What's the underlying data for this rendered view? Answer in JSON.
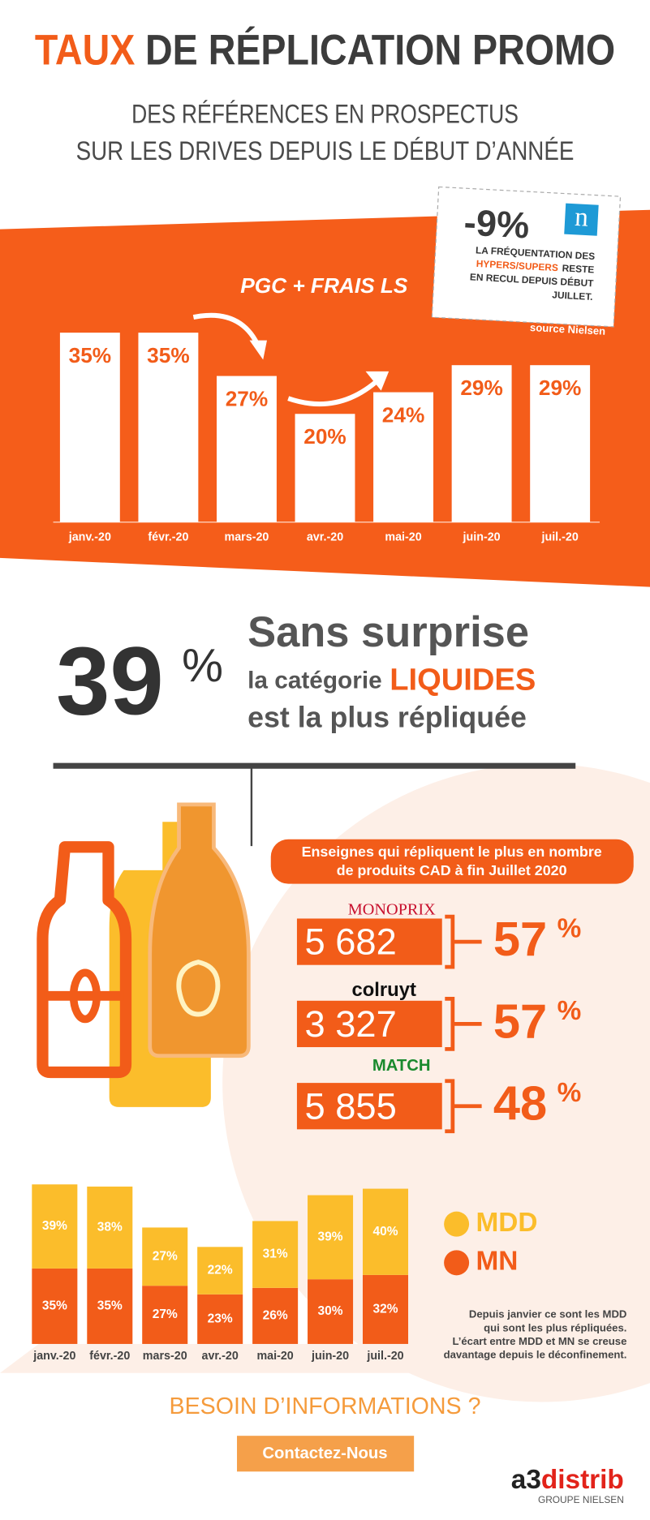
{
  "header": {
    "title_highlight": "TAUX",
    "title_rest": "DE RÉPLICATION PROMO",
    "subtitle_line1": "DES RÉFÉRENCES EN PROSPECTUS",
    "subtitle_line2": "SUR LES DRIVES DEPUIS LE DÉBUT D’ANNÉE"
  },
  "nielsen_card": {
    "value": "-9%",
    "logo": "n",
    "line1": "LA FRÉQUENTATION DES",
    "highlight": "HYPERS/SUPERS",
    "line2_rest": "RESTE",
    "line3": "EN RECUL DEPUIS DÉBUT",
    "line4": "JUILLET.",
    "source": "source Nielsen"
  },
  "chart_data": [
    {
      "type": "bar",
      "title": "PGC + FRAIS LS",
      "color": "#ffffff",
      "label_color": "#f25c19",
      "categories": [
        "janv.-20",
        "févr.-20",
        "mars-20",
        "avr.-20",
        "mai-20",
        "juin-20",
        "juil.-20"
      ],
      "values": [
        35,
        35,
        27,
        20,
        24,
        29,
        29
      ],
      "value_labels": [
        "35%",
        "35%",
        "27%",
        "20%",
        "24%",
        "29%",
        "29%"
      ]
    },
    {
      "type": "stacked_bar",
      "categories": [
        "janv.-20",
        "févr.-20",
        "mars-20",
        "avr.-20",
        "mai-20",
        "juin-20",
        "juil.-20"
      ],
      "series": [
        {
          "name": "MDD",
          "color": "#fbbd2b",
          "values": [
            39,
            38,
            27,
            22,
            31,
            39,
            40
          ],
          "value_labels": [
            "39%",
            "38%",
            "27%",
            "22%",
            "31%",
            "39%",
            "40%"
          ]
        },
        {
          "name": "MN",
          "color": "#f25c19",
          "values": [
            35,
            35,
            27,
            23,
            26,
            30,
            32
          ],
          "value_labels": [
            "35%",
            "35%",
            "27%",
            "23%",
            "26%",
            "30%",
            "32%"
          ]
        }
      ],
      "note": [
        "Depuis janvier ce sont les MDD",
        "qui sont les plus répliquées.",
        "L’écart entre MDD et MN se creuse",
        "davantage depuis le déconfinement."
      ]
    }
  ],
  "highlight": {
    "value": "39",
    "unit": "%",
    "line1": "Sans surprise",
    "line2": "la catégorie",
    "keyword": "LIQUIDES",
    "line3": "est la plus répliquée"
  },
  "retailers": {
    "title_line1": "Enseignes qui répliquent le plus en nombre",
    "title_line2": "de produits CAD à fin Juillet 2020",
    "rows": [
      {
        "brand": "MONOPRIX",
        "count": "5 682",
        "share": "57",
        "unit": "%"
      },
      {
        "brand": "colruyt",
        "count": "3 327",
        "share": "57",
        "unit": "%"
      },
      {
        "brand": "MATCH",
        "count": "5 855",
        "share": "48",
        "unit": "%"
      }
    ]
  },
  "footer": {
    "question": "BESOIN D’INFORMATIONS ?",
    "button": "Contactez-Nous",
    "brand_a3": "a3",
    "brand_name": "distrib",
    "group": "GROUPE NIELSEN"
  }
}
